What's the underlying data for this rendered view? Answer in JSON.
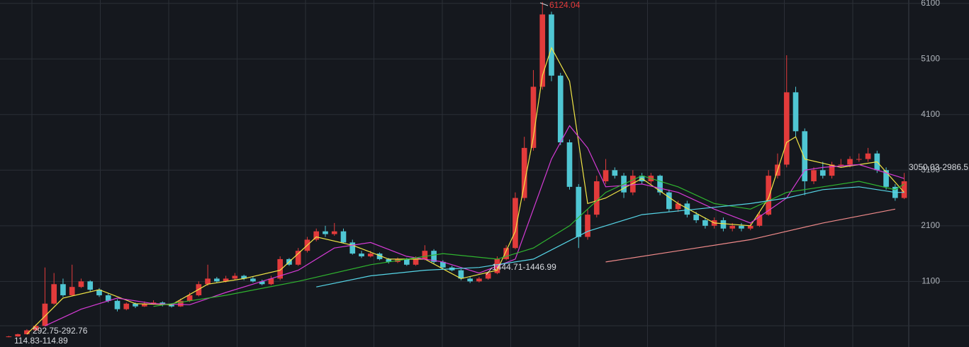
{
  "chart_data": {
    "type": "candlestick",
    "ylim": [
      -80,
      6160
    ],
    "yticks": [
      1100,
      2100,
      3100,
      4100,
      5100,
      6100
    ],
    "grid": true,
    "up_color": "#e23b3b",
    "down_color": "#4fc6d3",
    "open": [
      100,
      110,
      150,
      220,
      300,
      700,
      1050,
      850,
      1000,
      1100,
      950,
      850,
      750,
      600,
      700,
      650,
      700,
      720,
      680,
      650,
      750,
      850,
      1050,
      1150,
      1100,
      1150,
      1200,
      1150,
      1100,
      1050,
      1150,
      1500,
      1400,
      1650,
      1850,
      2000,
      1950,
      2000,
      1800,
      1600,
      1550,
      1600,
      1500,
      1450,
      1500,
      1400,
      1500,
      1650,
      1450,
      1350,
      1300,
      1150,
      1100,
      1150,
      1250,
      1500,
      1700,
      2600,
      3500,
      4600,
      5900,
      4800,
      3600,
      2800,
      1900,
      2300,
      2900,
      3100,
      3000,
      2700,
      3000,
      2900,
      3000,
      2700,
      2400,
      2500,
      2300,
      2200,
      2100,
      2200,
      2050,
      2100,
      2050,
      2100,
      2300,
      3000,
      3200,
      4500,
      3800,
      2900,
      3100,
      3000,
      3200,
      3200,
      3300,
      3300,
      3400,
      3100,
      2800,
      2600
    ],
    "high": [
      120,
      160,
      240,
      330,
      1350,
      1250,
      1150,
      1400,
      1150,
      1120,
      980,
      880,
      780,
      720,
      720,
      740,
      760,
      740,
      700,
      790,
      900,
      1100,
      1400,
      1180,
      1200,
      1250,
      1220,
      1180,
      1130,
      1200,
      1550,
      1520,
      1700,
      1900,
      2050,
      2100,
      2150,
      2050,
      1850,
      1650,
      1650,
      1620,
      1520,
      1530,
      1520,
      1550,
      1750,
      1680,
      1480,
      1380,
      1320,
      1180,
      1180,
      1280,
      1550,
      1750,
      2700,
      3700,
      4900,
      6124.04,
      5950,
      4850,
      3650,
      2850,
      2400,
      3000,
      3300,
      3150,
      3050,
      3100,
      3050,
      3050,
      3020,
      2750,
      2550,
      2550,
      2350,
      2250,
      2250,
      2250,
      2150,
      2150,
      2150,
      2350,
      3100,
      3400,
      5166,
      4600,
      3850,
      3150,
      3250,
      3250,
      3300,
      3350,
      3400,
      3500,
      3450,
      3150,
      2850,
      3050
    ],
    "low": [
      95,
      105,
      145,
      210,
      290,
      680,
      820,
      830,
      980,
      920,
      820,
      720,
      560,
      580,
      620,
      640,
      680,
      650,
      630,
      640,
      730,
      830,
      1020,
      1080,
      1080,
      1130,
      1120,
      1080,
      1030,
      1030,
      1120,
      1380,
      1380,
      1620,
      1820,
      1900,
      1920,
      1780,
      1580,
      1520,
      1530,
      1480,
      1420,
      1430,
      1380,
      1380,
      1480,
      1420,
      1330,
      1280,
      1120,
      1070,
      1080,
      1130,
      1230,
      1480,
      1680,
      2550,
      3450,
      4550,
      4700,
      3550,
      2750,
      1700,
      1850,
      2250,
      2850,
      2950,
      2600,
      2650,
      2850,
      2850,
      2650,
      2350,
      2350,
      2250,
      2150,
      2050,
      2050,
      2000,
      2000,
      2000,
      2020,
      2080,
      2280,
      2950,
      3150,
      3700,
      2650,
      2850,
      2950,
      2950,
      3150,
      3150,
      3250,
      3250,
      3050,
      2750,
      2550,
      2580
    ],
    "close": [
      110,
      150,
      220,
      300,
      700,
      1050,
      850,
      1000,
      1100,
      950,
      850,
      750,
      600,
      700,
      650,
      700,
      720,
      680,
      650,
      750,
      850,
      1050,
      1150,
      1100,
      1150,
      1200,
      1150,
      1100,
      1050,
      1150,
      1500,
      1400,
      1650,
      1850,
      2000,
      1950,
      2000,
      1800,
      1600,
      1550,
      1600,
      1500,
      1450,
      1500,
      1400,
      1500,
      1650,
      1450,
      1350,
      1300,
      1150,
      1100,
      1150,
      1250,
      1500,
      1700,
      2600,
      3500,
      4600,
      5900,
      4800,
      3600,
      2800,
      1900,
      2300,
      2900,
      3100,
      3000,
      2700,
      3000,
      2900,
      3000,
      2700,
      2400,
      2500,
      2300,
      2200,
      2100,
      2200,
      2050,
      2100,
      2050,
      2100,
      2300,
      3000,
      3200,
      4500,
      3800,
      2900,
      3100,
      3000,
      3200,
      3200,
      3300,
      3300,
      3400,
      3100,
      2800,
      2600,
      2900
    ],
    "series": [
      {
        "color": "#f2e646",
        "x": [
          2,
          6,
          10,
          14,
          18,
          22,
          26,
          30,
          34,
          38,
          42,
          46,
          50,
          54,
          56,
          58,
          59,
          60,
          62,
          64,
          66,
          70,
          74,
          78,
          82,
          84,
          86,
          87,
          88,
          92,
          96,
          99
        ],
        "values": [
          150,
          800,
          950,
          700,
          680,
          1050,
          1150,
          1300,
          1900,
          1750,
          1500,
          1500,
          1150,
          1300,
          2000,
          3700,
          4800,
          5300,
          4700,
          2500,
          2600,
          2950,
          2500,
          2150,
          2100,
          2600,
          3600,
          3700,
          3300,
          3150,
          3250,
          2700
        ]
      },
      {
        "color": "#d63bd6",
        "x": [
          4,
          8,
          12,
          16,
          20,
          24,
          28,
          32,
          36,
          40,
          44,
          48,
          52,
          56,
          60,
          62,
          64,
          66,
          70,
          74,
          78,
          82,
          86,
          88,
          90,
          94,
          98,
          99
        ],
        "values": [
          300,
          600,
          800,
          700,
          680,
          900,
          1100,
          1300,
          1700,
          1800,
          1550,
          1450,
          1250,
          1500,
          3300,
          3900,
          3500,
          2800,
          2850,
          2700,
          2400,
          2150,
          2600,
          3100,
          3150,
          3200,
          3000,
          2950
        ]
      },
      {
        "color": "#2fb52f",
        "x": [
          16,
          24,
          32,
          40,
          48,
          54,
          58,
          62,
          66,
          70,
          74,
          78,
          82,
          86,
          90,
          94,
          98,
          99
        ],
        "values": [
          650,
          850,
          1100,
          1400,
          1600,
          1500,
          1700,
          2100,
          2700,
          3000,
          2800,
          2500,
          2400,
          2700,
          2800,
          2900,
          2750,
          2850
        ]
      },
      {
        "color": "#56d6e8",
        "x": [
          34,
          40,
          46,
          52,
          58,
          64,
          70,
          76,
          82,
          86,
          90,
          94,
          98,
          99
        ],
        "values": [
          1000,
          1200,
          1300,
          1350,
          1500,
          2000,
          2300,
          2400,
          2500,
          2600,
          2750,
          2800,
          2700,
          2700
        ]
      },
      {
        "color": "#f08a8a",
        "x": [
          66,
          74,
          82,
          90,
          98
        ],
        "values": [
          1450,
          1650,
          1850,
          2150,
          2400
        ]
      }
    ],
    "annotations": [
      "6124.04",
      "1444.71-1446.99",
      "292.75-292.76",
      "114.83-114.89",
      "3050.03-2986.5"
    ]
  }
}
